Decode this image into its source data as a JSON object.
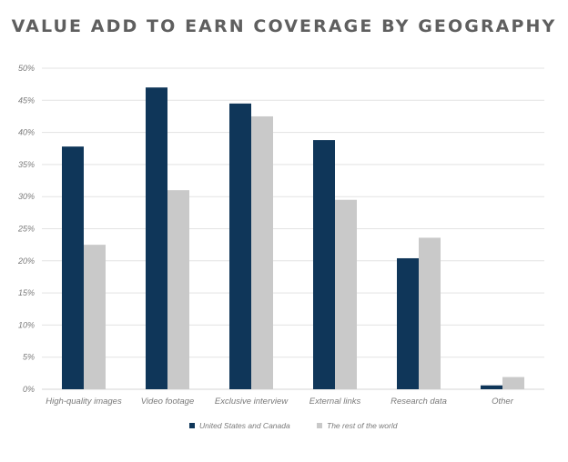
{
  "chart_data": {
    "type": "bar",
    "title": "VALUE ADD TO EARN COVERAGE BY GEOGRAPHY",
    "categories": [
      "High-quality images",
      "Video footage",
      "Exclusive interview",
      "External links",
      "Research data",
      "Other"
    ],
    "series": [
      {
        "name": "United States and Canada",
        "color": "#0f3659",
        "values": [
          37.8,
          47.0,
          44.5,
          38.8,
          20.4,
          0.6
        ]
      },
      {
        "name": "The rest of the world",
        "color": "#c9c9c9",
        "values": [
          22.5,
          31.0,
          42.5,
          29.5,
          23.6,
          1.9
        ]
      }
    ],
    "y_ticks": [
      "0%",
      "5%",
      "10%",
      "15%",
      "20%",
      "25%",
      "30%",
      "35%",
      "40%",
      "45%",
      "50%"
    ],
    "ylim": [
      0,
      50
    ],
    "grid": true,
    "legend_position": "bottom",
    "gridline_color": "#e3e3e3"
  }
}
